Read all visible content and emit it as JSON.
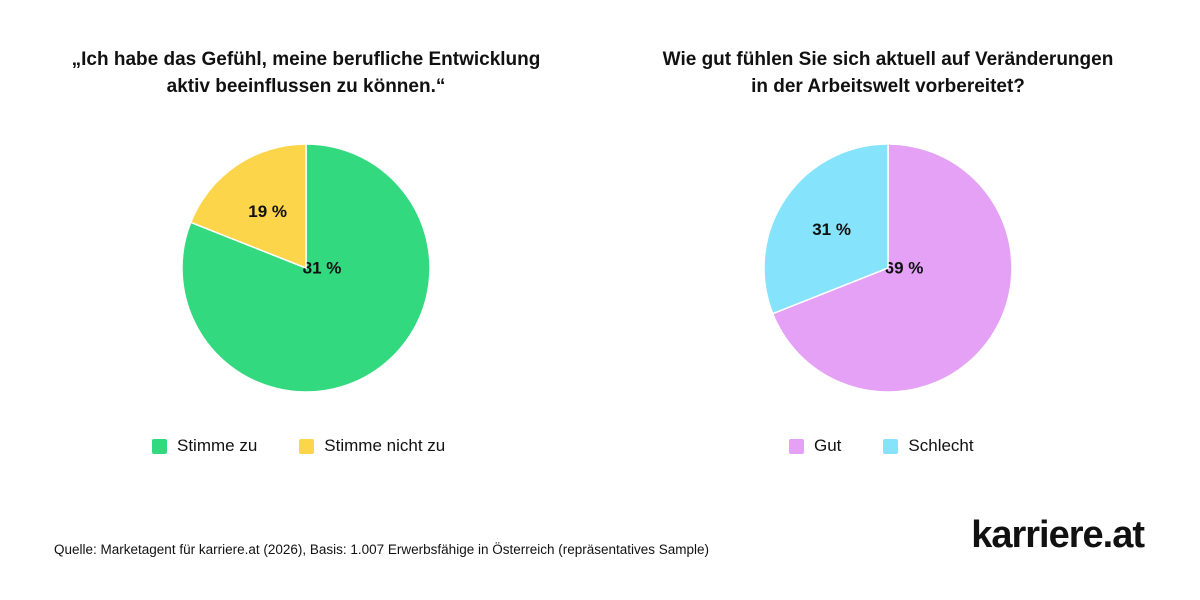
{
  "charts": {
    "left": {
      "title_line1": "„Ich habe das Gefühl, meine berufliche Entwicklung",
      "title_line2": "aktiv beeinflussen zu können.“"
    },
    "right": {
      "title_line1": "Wie gut fühlen Sie sich aktuell auf Veränderungen",
      "title_line2": "in der Arbeitswelt vorbereitet?"
    }
  },
  "chart_data": [
    {
      "type": "pie",
      "title": "„Ich habe das Gefühl, meine berufliche Entwicklung aktiv beeinflussen zu können.“",
      "categories": [
        "Stimme zu",
        "Stimme nicht zu"
      ],
      "values": [
        81,
        19
      ],
      "labels": [
        "81 %",
        "19 %"
      ],
      "colors": [
        "#33d97f",
        "#fdd54a"
      ],
      "legend": "bottom"
    },
    {
      "type": "pie",
      "title": "Wie gut fühlen Sie sich aktuell auf Veränderungen in der Arbeitswelt vorbereitet?",
      "categories": [
        "Gut",
        "Schlecht"
      ],
      "values": [
        69,
        31
      ],
      "labels": [
        "69 %",
        "31 %"
      ],
      "colors": [
        "#e4a1f5",
        "#85e3fb"
      ],
      "legend": "bottom"
    }
  ],
  "legend": {
    "left": [
      {
        "label": "Stimme zu",
        "color": "#33d97f"
      },
      {
        "label": "Stimme nicht zu",
        "color": "#fdd54a"
      }
    ],
    "right": [
      {
        "label": "Gut",
        "color": "#e4a1f5"
      },
      {
        "label": "Schlecht",
        "color": "#85e3fb"
      }
    ]
  },
  "source_note": "Quelle: Marketagent für karriere.at (2026), Basis: 1.007 Erwerbsfähige in Österreich (repräsentatives Sample)",
  "brand": {
    "logo_text": "karriere.at"
  }
}
